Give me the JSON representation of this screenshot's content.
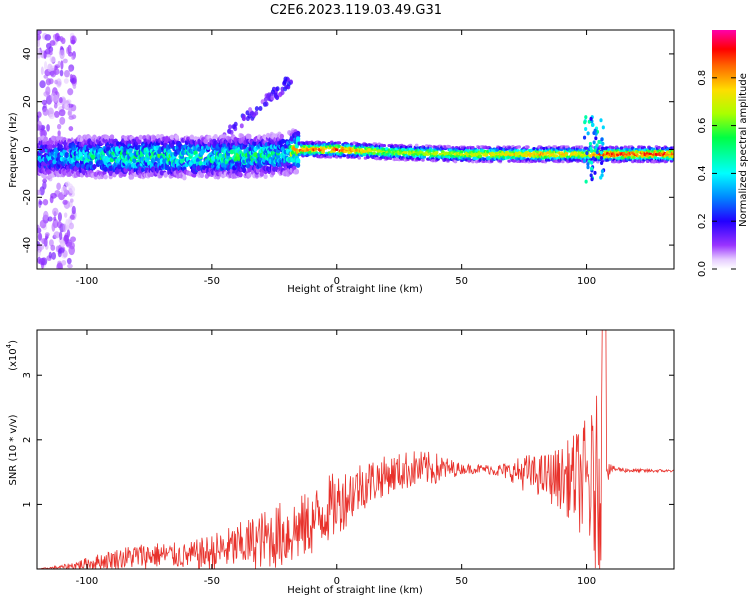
{
  "title": "C2E6.2023.119.03.49.G31",
  "chart_data": [
    {
      "type": "heatmap",
      "xlabel": "Height of straight line (km)",
      "ylabel": "Frequency (Hz)",
      "xlim": [
        -120,
        135
      ],
      "ylim": [
        -50,
        50
      ],
      "x_ticks": [
        "-100",
        "-50",
        "0",
        "50",
        "100"
      ],
      "x_tick_values": [
        -100,
        -50,
        0,
        50,
        100
      ],
      "y_ticks": [
        "-40",
        "-20",
        "0",
        "20",
        "40"
      ],
      "y_tick_values": [
        -40,
        -20,
        0,
        20,
        40
      ],
      "colorbar": {
        "label": "Normalized spectral amplitude",
        "ticks": [
          "0.0",
          "0.2",
          "0.4",
          "0.6",
          "0.8"
        ],
        "tick_values": [
          0.0,
          0.2,
          0.4,
          0.6,
          0.8
        ],
        "range": [
          0,
          1
        ],
        "colormap": "rainbow"
      },
      "ridge": {
        "description_points_x": [
          -110,
          -100,
          -80,
          -60,
          -40,
          -20,
          -15,
          0,
          20,
          50,
          85,
          100,
          105,
          135
        ],
        "center_freq": [
          -3,
          -3,
          -3,
          -3,
          -3,
          -2,
          0,
          0,
          -1,
          -2,
          -2,
          -2,
          -2,
          -2
        ],
        "amplitude": [
          0.35,
          0.45,
          0.5,
          0.5,
          0.5,
          0.45,
          0.9,
          0.95,
          0.7,
          0.75,
          0.85,
          0.8,
          0.95,
          0.95
        ]
      },
      "grid": false
    },
    {
      "type": "line",
      "xlabel": "Height of straight line (km)",
      "ylabel": "SNR (10 * v/v)",
      "yscale_note": "(x10",
      "yscale_exp": "4",
      "yscale_close": ")",
      "xlim": [
        -120,
        135
      ],
      "ylim": [
        0,
        3.7
      ],
      "x_ticks": [
        "-100",
        "-50",
        "0",
        "50",
        "100"
      ],
      "x_tick_values": [
        -100,
        -50,
        0,
        50,
        100
      ],
      "y_ticks": [
        "1",
        "2",
        "3"
      ],
      "y_tick_values": [
        1,
        2,
        3
      ],
      "series": [
        {
          "color": "#e8312b",
          "envelope_x": [
            -120,
            -110,
            -100,
            -90,
            -80,
            -70,
            -60,
            -50,
            -40,
            -30,
            -20,
            -10,
            -5,
            0,
            5,
            10,
            20,
            30,
            40,
            50,
            60,
            70,
            75,
            80,
            90,
            95,
            100,
            103,
            105,
            107,
            108,
            110,
            120,
            135
          ],
          "envelope_center": [
            0.0,
            0.03,
            0.08,
            0.15,
            0.2,
            0.22,
            0.2,
            0.25,
            0.35,
            0.45,
            0.55,
            0.7,
            0.9,
            1.0,
            1.15,
            1.3,
            1.45,
            1.55,
            1.55,
            1.55,
            1.55,
            1.5,
            1.5,
            1.45,
            1.4,
            1.4,
            1.35,
            1.2,
            1.4,
            1.8,
            1.55,
            1.55,
            1.52,
            1.52
          ],
          "envelope_amp": [
            0.0,
            0.03,
            0.1,
            0.15,
            0.2,
            0.2,
            0.2,
            0.3,
            0.35,
            0.45,
            0.55,
            0.5,
            0.55,
            0.5,
            0.45,
            0.4,
            0.3,
            0.3,
            0.25,
            0.08,
            0.07,
            0.15,
            0.3,
            0.3,
            0.5,
            0.7,
            1.0,
            1.3,
            1.5,
            1.3,
            0.25,
            0.05,
            0.03,
            0.02
          ]
        }
      ],
      "grid": false
    }
  ]
}
